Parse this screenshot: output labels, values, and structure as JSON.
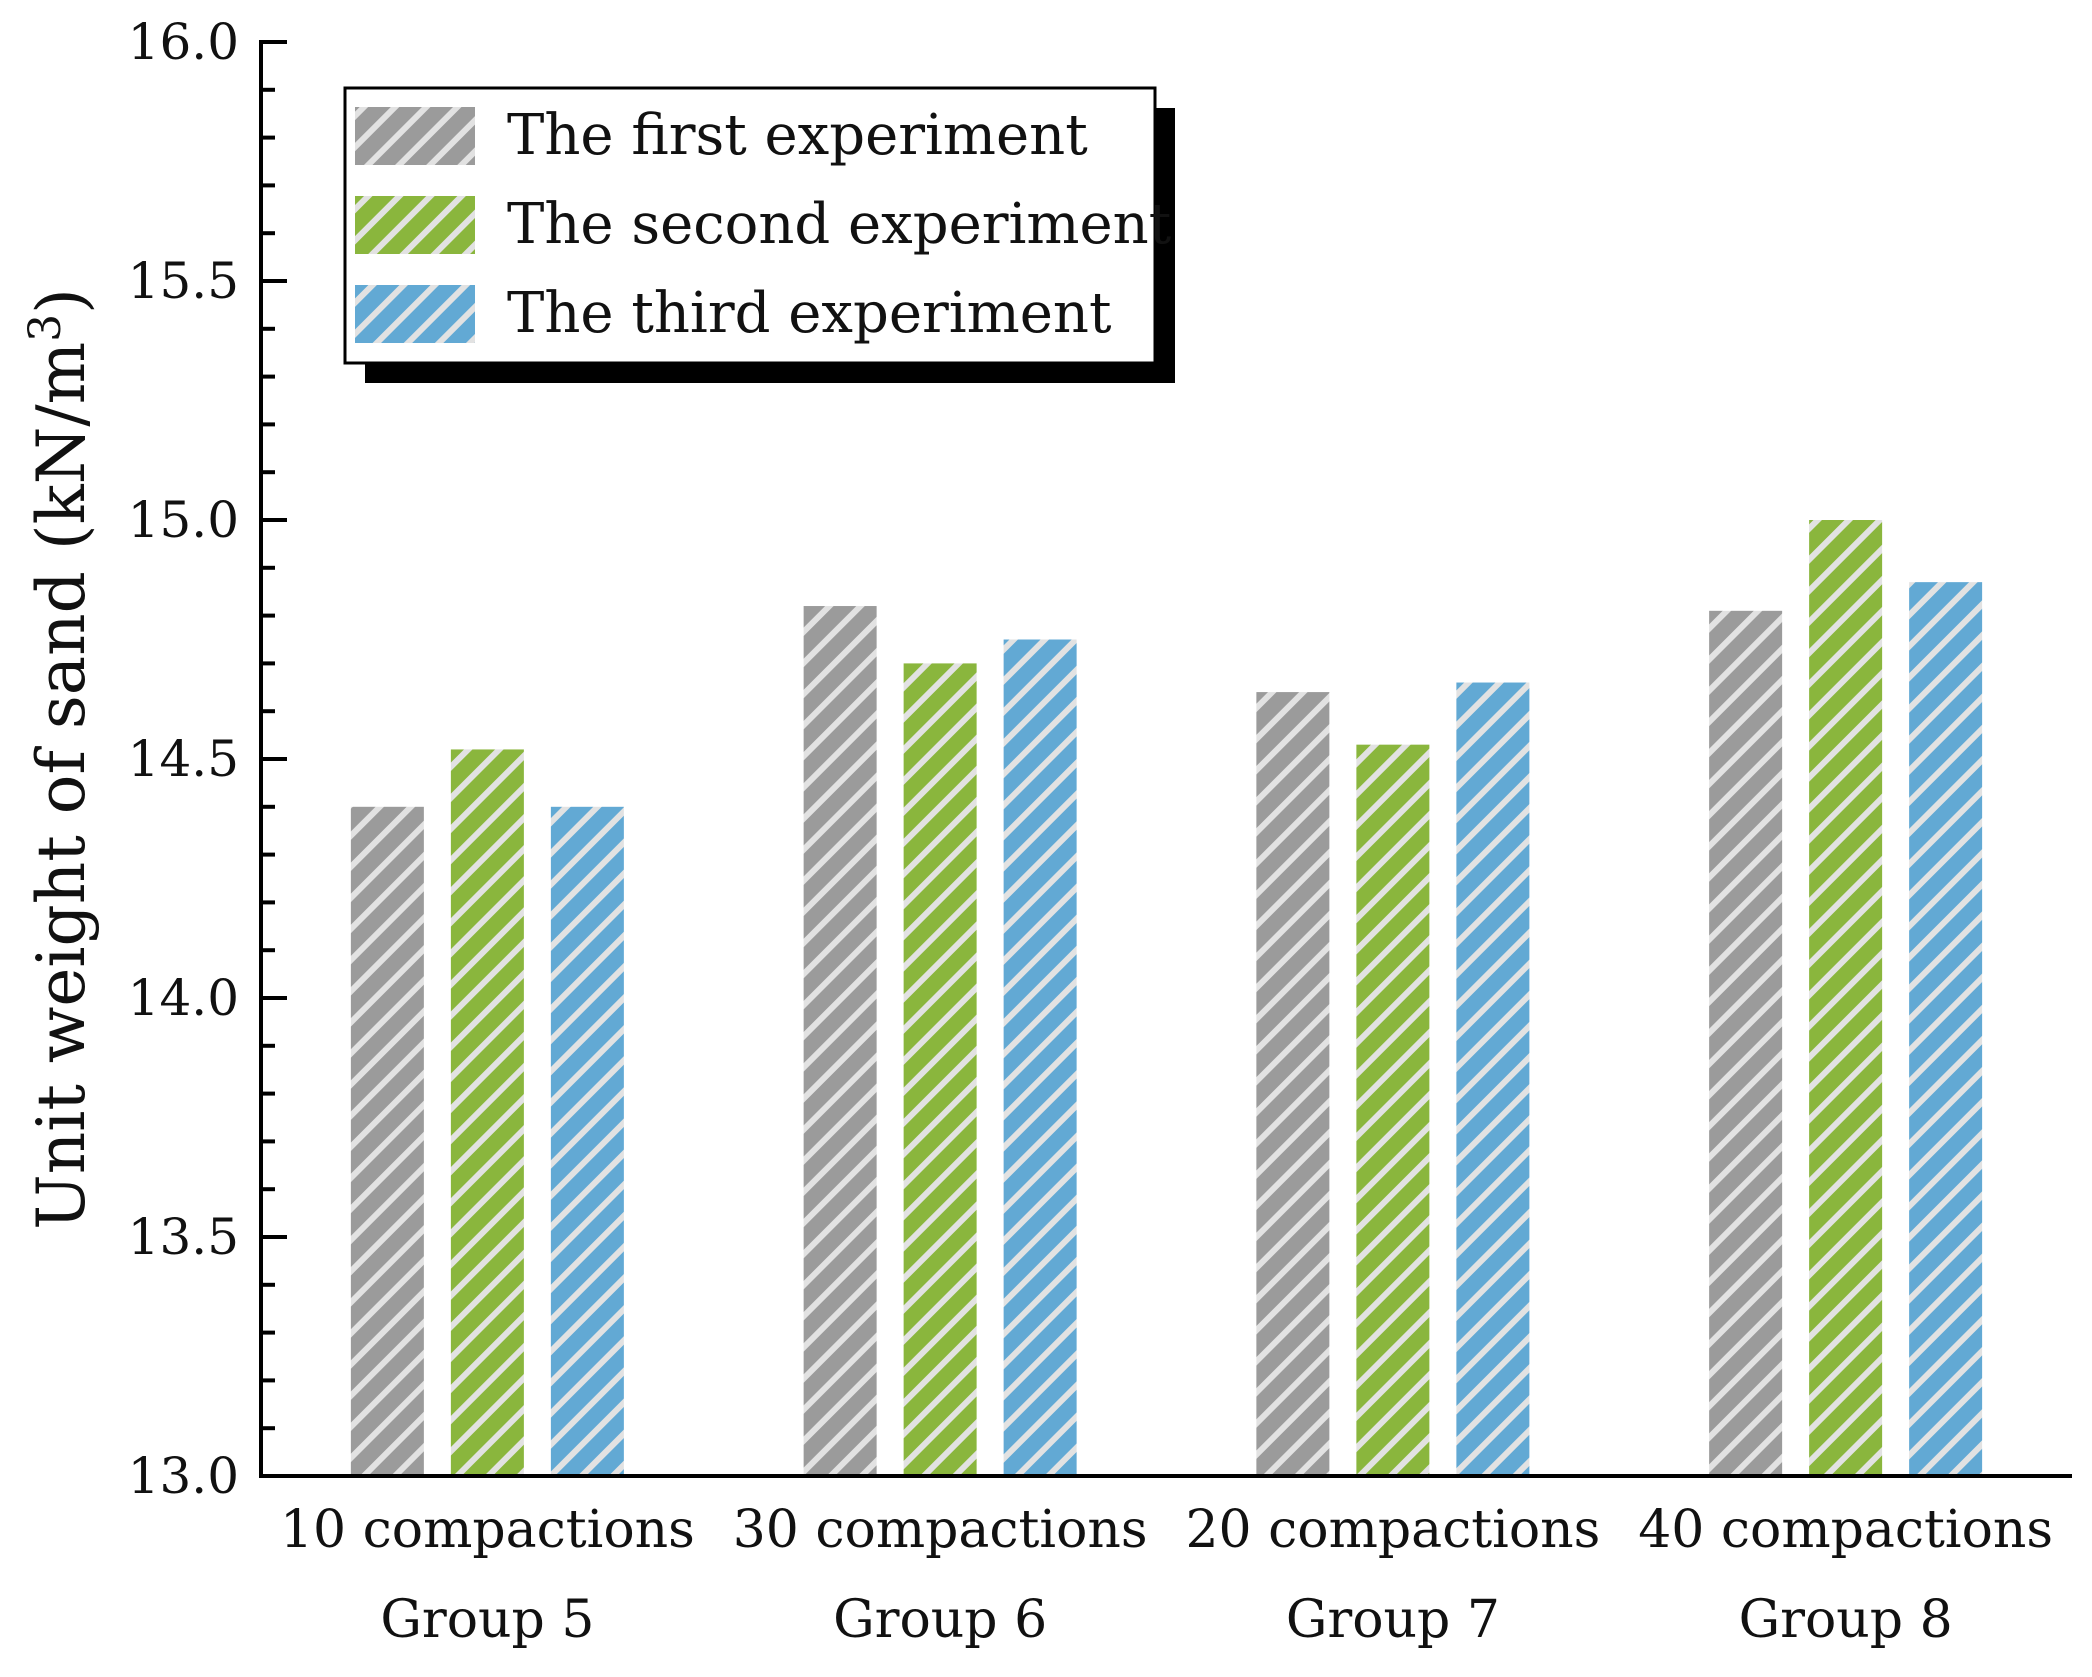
{
  "chart_data": {
    "type": "bar",
    "title": "",
    "xlabel": "",
    "ylabel": "Unit weight of sand (kN/m",
    "ylabel_superscript": "3",
    "ylabel_close": ")",
    "ylim": [
      13.0,
      16.0
    ],
    "yticks": [
      "13.0",
      "13.5",
      "14.0",
      "14.5",
      "15.0",
      "15.5",
      "16.0"
    ],
    "categories": [
      {
        "line1": "10 compactions",
        "line2": "Group 5"
      },
      {
        "line1": "30 compactions",
        "line2": "Group 6"
      },
      {
        "line1": "20 compactions",
        "line2": "Group 7"
      },
      {
        "line1": "40 compactions",
        "line2": "Group 8"
      }
    ],
    "series": [
      {
        "name": "The first experiment",
        "color": "#9b9b9b",
        "values": [
          14.4,
          14.82,
          14.64,
          14.81
        ]
      },
      {
        "name": "The second experiment",
        "color": "#8ab63d",
        "values": [
          14.52,
          14.7,
          14.53,
          15.0
        ]
      },
      {
        "name": "The third experiment",
        "color": "#62a9d4",
        "values": [
          14.4,
          14.75,
          14.66,
          14.87
        ]
      }
    ],
    "hatch_color": "#e2e2e2",
    "legend_position": "top-left",
    "grid": false
  }
}
